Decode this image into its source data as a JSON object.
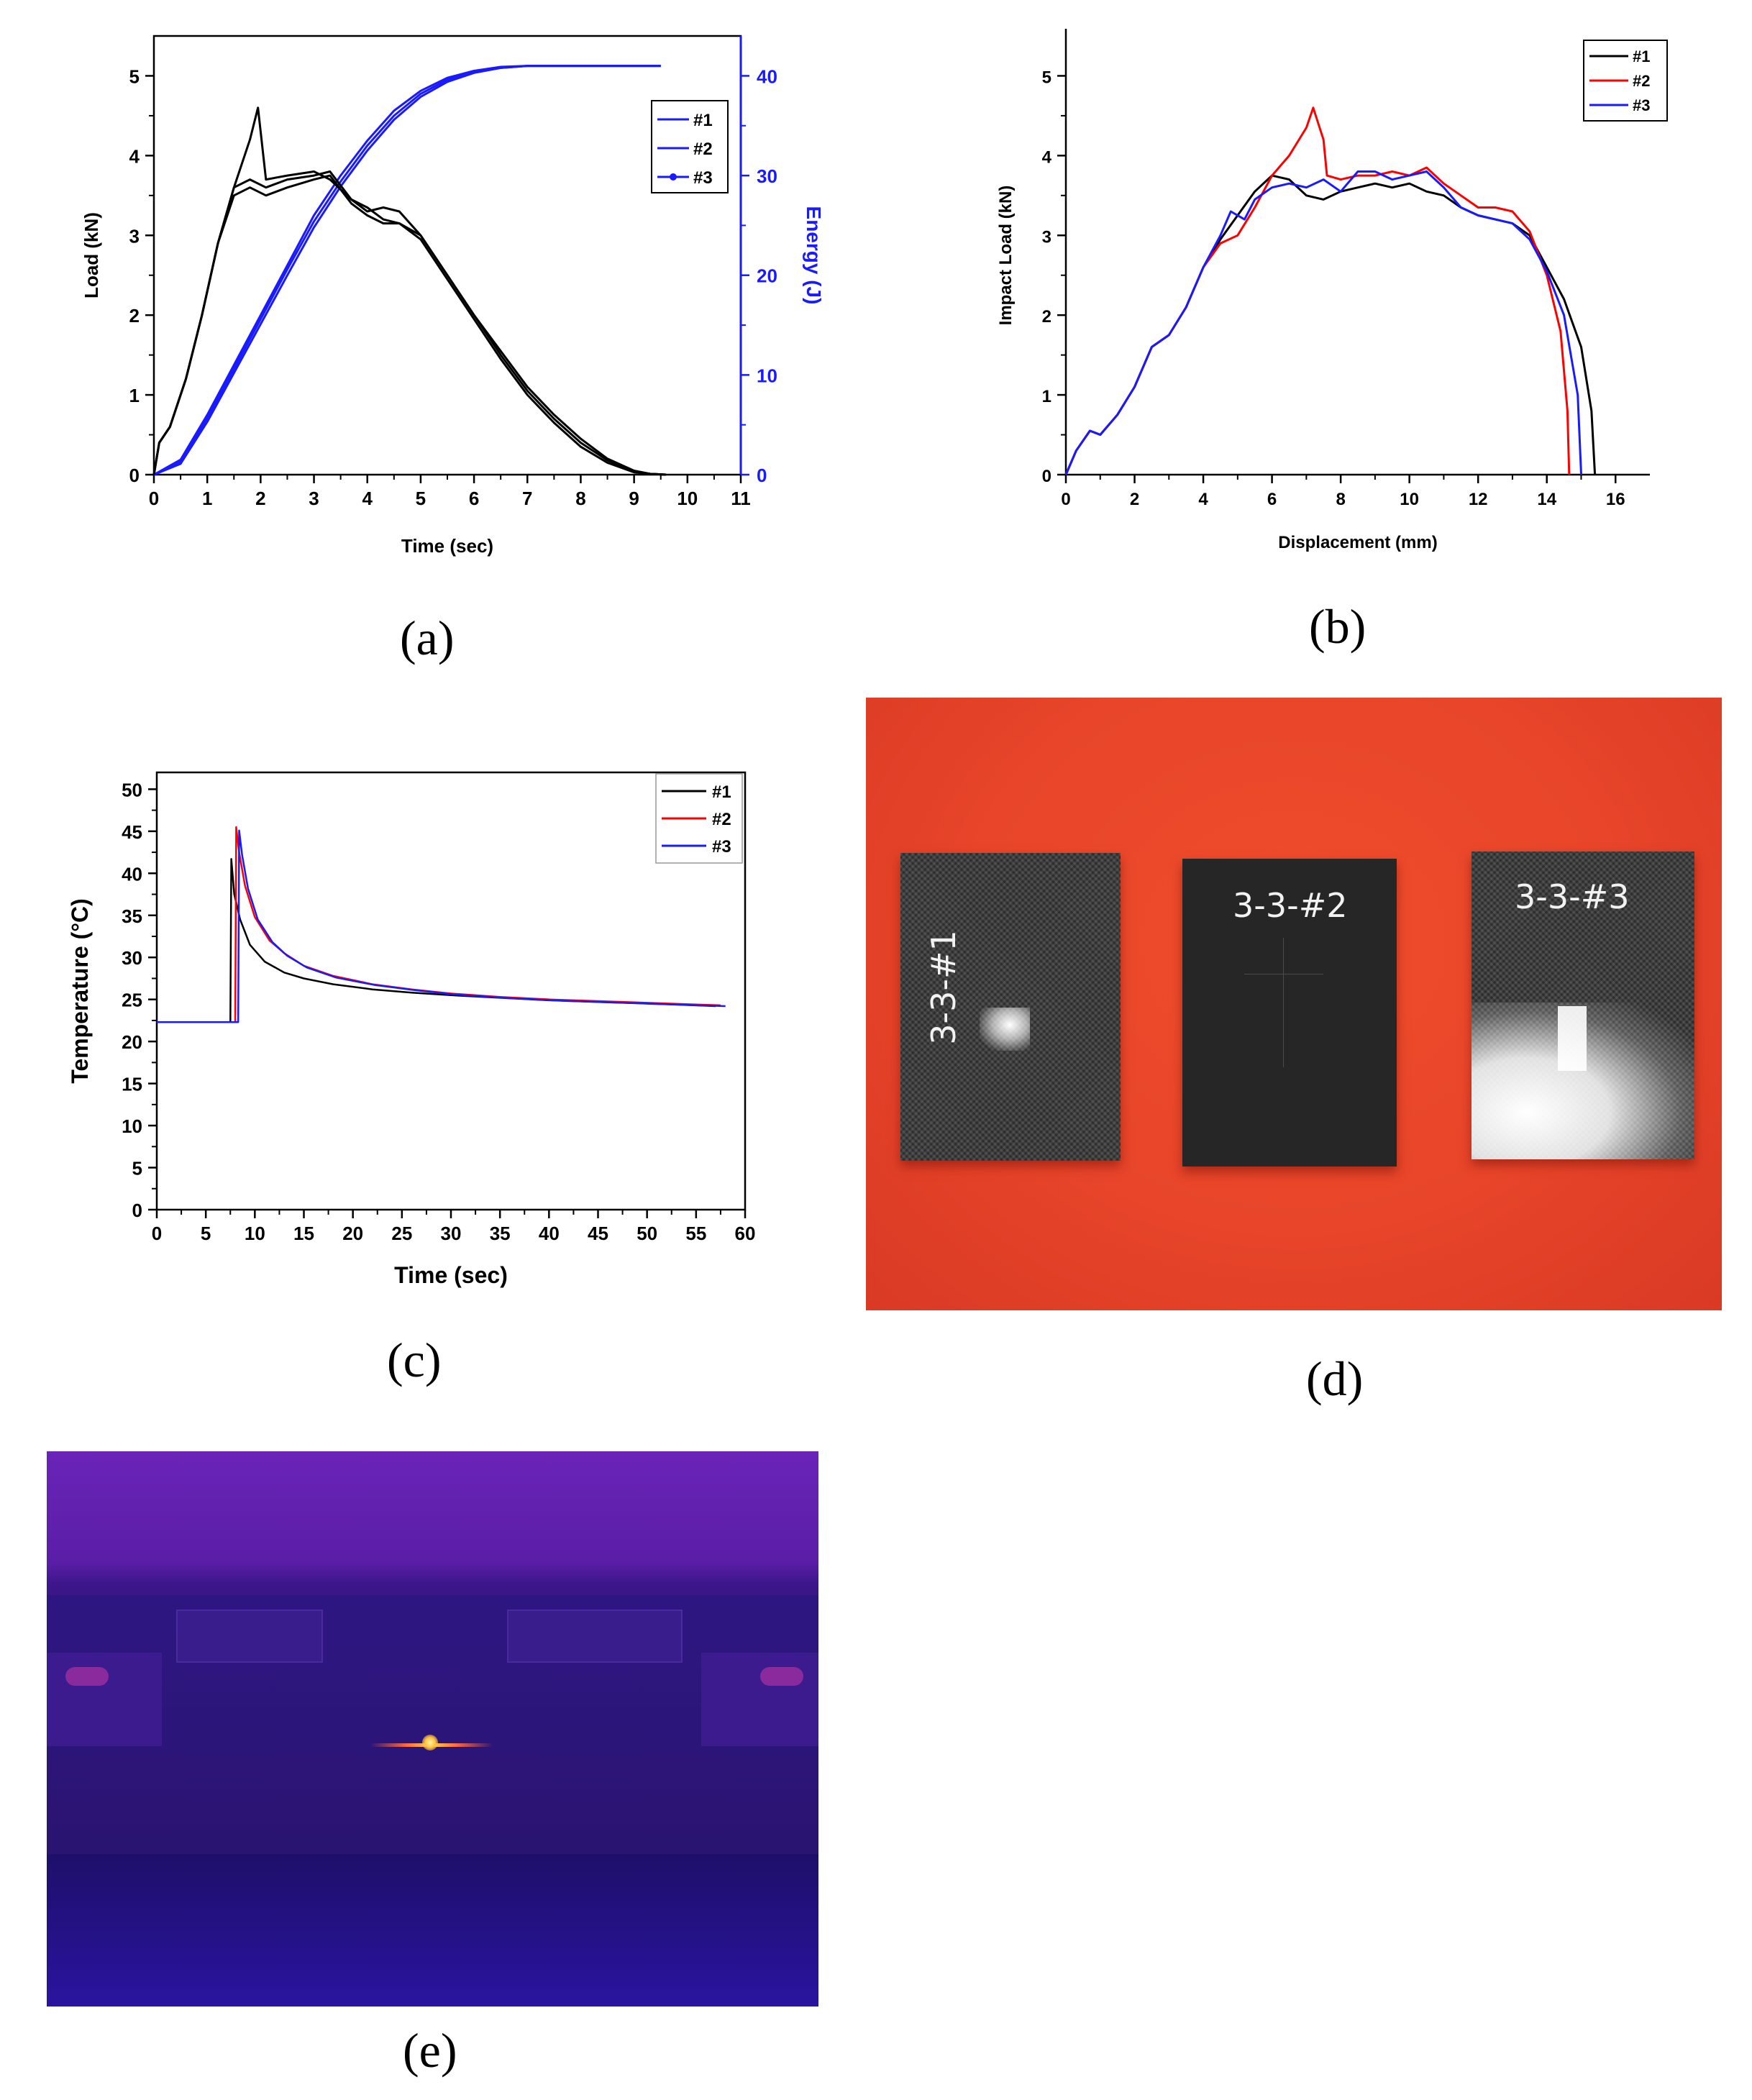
{
  "captions": [
    "(a)",
    "(b)",
    "(c)",
    "(d)",
    "(e)"
  ],
  "chart_data": [
    {
      "type": "line",
      "panel": "(a)",
      "xlabel": "Time (sec)",
      "ylabel": "Load (kN)",
      "y2label": "Energy (J)",
      "xlim": [
        0,
        11
      ],
      "ylim": [
        0,
        5.5
      ],
      "y2lim": [
        0,
        44
      ],
      "xticks": [
        0,
        1,
        2,
        3,
        4,
        5,
        6,
        7,
        8,
        9,
        10,
        11
      ],
      "yticks": [
        0,
        1,
        2,
        3,
        4,
        5
      ],
      "y2ticks": [
        0,
        10,
        20,
        30,
        40
      ],
      "legend": [
        "#1",
        "#2",
        "#3"
      ],
      "legend_position": "top-right",
      "colors": {
        "load": "#000000",
        "energy": "#1a1aff"
      },
      "load_series": [
        {
          "name": "#1",
          "x": [
            0,
            0.1,
            0.3,
            0.6,
            0.9,
            1.2,
            1.5,
            1.8,
            1.95,
            2.1,
            2.5,
            3.0,
            3.3,
            3.7,
            4.0,
            4.3,
            4.6,
            5.0,
            5.5,
            6.0,
            6.5,
            7.0,
            7.5,
            8.0,
            8.5,
            9.0,
            9.3,
            9.6
          ],
          "y": [
            0,
            0.4,
            0.6,
            1.2,
            2.0,
            2.9,
            3.6,
            4.2,
            4.6,
            3.7,
            3.75,
            3.8,
            3.7,
            3.45,
            3.3,
            3.35,
            3.3,
            3.0,
            2.5,
            2.0,
            1.55,
            1.1,
            0.75,
            0.45,
            0.2,
            0.05,
            0.01,
            0
          ]
        },
        {
          "name": "#2",
          "x": [
            0,
            0.1,
            0.3,
            0.6,
            0.9,
            1.2,
            1.5,
            1.8,
            2.1,
            2.5,
            3.0,
            3.3,
            3.7,
            4.0,
            4.3,
            4.6,
            5.0,
            5.5,
            6.0,
            6.5,
            7.0,
            7.5,
            8.0,
            8.5,
            9.0,
            9.3,
            9.6
          ],
          "y": [
            0,
            0.4,
            0.6,
            1.2,
            2.0,
            2.9,
            3.6,
            3.7,
            3.6,
            3.7,
            3.75,
            3.8,
            3.45,
            3.35,
            3.2,
            3.15,
            3.0,
            2.5,
            2.0,
            1.5,
            1.05,
            0.7,
            0.4,
            0.18,
            0.04,
            0.01,
            0
          ]
        },
        {
          "name": "#3",
          "x": [
            0,
            0.1,
            0.3,
            0.6,
            0.9,
            1.2,
            1.5,
            1.8,
            2.1,
            2.5,
            3.0,
            3.3,
            3.7,
            4.0,
            4.3,
            4.6,
            5.0,
            5.5,
            6.0,
            6.5,
            7.0,
            7.5,
            8.0,
            8.5,
            9.0,
            9.3,
            9.6
          ],
          "y": [
            0,
            0.4,
            0.6,
            1.2,
            2.0,
            2.9,
            3.5,
            3.6,
            3.5,
            3.6,
            3.7,
            3.75,
            3.4,
            3.25,
            3.15,
            3.15,
            2.95,
            2.45,
            1.95,
            1.45,
            1.0,
            0.65,
            0.35,
            0.15,
            0.03,
            0.01,
            0
          ]
        }
      ],
      "energy_series": [
        {
          "name": "#1",
          "x": [
            0,
            0.5,
            1,
            1.5,
            2,
            2.5,
            3,
            3.5,
            4,
            4.5,
            5,
            5.5,
            6,
            6.5,
            7,
            7.5,
            8,
            9,
            9.5
          ],
          "y": [
            0,
            1.5,
            6,
            11,
            16,
            21,
            26,
            30,
            33.5,
            36.5,
            38.5,
            39.8,
            40.5,
            40.9,
            41,
            41,
            41,
            41,
            41
          ]
        },
        {
          "name": "#2",
          "x": [
            0,
            0.5,
            1,
            1.5,
            2,
            2.5,
            3,
            3.5,
            4,
            4.5,
            5,
            5.5,
            6,
            6.5,
            7,
            7.5,
            8,
            9,
            9.5
          ],
          "y": [
            0,
            1.3,
            5.7,
            10.6,
            15.6,
            20.6,
            25.4,
            29.4,
            33,
            36,
            38.2,
            39.6,
            40.4,
            40.8,
            41,
            41,
            41,
            41,
            41
          ]
        },
        {
          "name": "#3",
          "x": [
            0,
            0.5,
            1,
            1.5,
            2,
            2.5,
            3,
            3.5,
            4,
            4.5,
            5,
            5.5,
            6,
            6.5,
            7,
            7.5,
            8,
            9,
            9.5
          ],
          "y": [
            0,
            1.1,
            5.3,
            10.2,
            15.1,
            20,
            24.8,
            28.9,
            32.5,
            35.6,
            37.9,
            39.4,
            40.3,
            40.8,
            41,
            41,
            41,
            41,
            41
          ]
        }
      ]
    },
    {
      "type": "line",
      "panel": "(b)",
      "xlabel": "Displacement (mm)",
      "ylabel": "Impact Load (kN)",
      "xlim": [
        0,
        17
      ],
      "ylim": [
        0,
        5.5
      ],
      "xticks": [
        0,
        2,
        4,
        6,
        8,
        10,
        12,
        14,
        16
      ],
      "yticks": [
        0,
        1,
        2,
        3,
        4,
        5
      ],
      "legend_position": "top-right",
      "series": [
        {
          "name": "#1",
          "color": "#000000",
          "x": [
            0,
            0.3,
            0.7,
            1.0,
            1.5,
            2.0,
            2.5,
            3.0,
            3.5,
            4.0,
            4.5,
            5.0,
            5.5,
            6.0,
            6.5,
            7.0,
            7.5,
            8.0,
            8.5,
            9.0,
            9.5,
            10.0,
            10.5,
            11.0,
            11.5,
            12.0,
            12.5,
            13.0,
            13.5,
            14.0,
            14.5,
            15.0,
            15.3,
            15.4
          ],
          "y": [
            0,
            0.3,
            0.55,
            0.5,
            0.75,
            1.1,
            1.6,
            1.75,
            2.1,
            2.6,
            2.95,
            3.25,
            3.55,
            3.75,
            3.7,
            3.5,
            3.45,
            3.55,
            3.6,
            3.65,
            3.6,
            3.65,
            3.55,
            3.5,
            3.35,
            3.25,
            3.2,
            3.15,
            3.0,
            2.6,
            2.2,
            1.6,
            0.8,
            0
          ]
        },
        {
          "name": "#2",
          "color": "#ff0000",
          "x": [
            0,
            0.3,
            0.7,
            1.0,
            1.5,
            2.0,
            2.5,
            3.0,
            3.5,
            4.0,
            4.5,
            5.0,
            5.5,
            6.0,
            6.5,
            7.0,
            7.2,
            7.5,
            7.6,
            8.0,
            8.5,
            9.0,
            9.5,
            10.0,
            10.5,
            11.0,
            11.5,
            12.0,
            12.5,
            13.0,
            13.5,
            14.0,
            14.4,
            14.6,
            14.65
          ],
          "y": [
            0,
            0.3,
            0.55,
            0.5,
            0.75,
            1.1,
            1.6,
            1.75,
            2.1,
            2.6,
            2.9,
            3.0,
            3.35,
            3.75,
            4.0,
            4.35,
            4.6,
            4.2,
            3.75,
            3.7,
            3.75,
            3.75,
            3.8,
            3.75,
            3.85,
            3.65,
            3.5,
            3.35,
            3.35,
            3.3,
            3.05,
            2.5,
            1.8,
            0.8,
            0
          ]
        },
        {
          "name": "#3",
          "color": "#1a1aff",
          "x": [
            0,
            0.3,
            0.7,
            1.0,
            1.5,
            2.0,
            2.5,
            3.0,
            3.5,
            4.0,
            4.5,
            4.8,
            5.2,
            5.5,
            6.0,
            6.5,
            7.0,
            7.5,
            8.0,
            8.5,
            9.0,
            9.5,
            10.0,
            10.5,
            11.0,
            11.5,
            12.0,
            12.5,
            13.0,
            13.5,
            14.0,
            14.5,
            14.9,
            15.0
          ],
          "y": [
            0,
            0.3,
            0.55,
            0.5,
            0.75,
            1.1,
            1.6,
            1.75,
            2.1,
            2.6,
            3.0,
            3.3,
            3.2,
            3.45,
            3.6,
            3.65,
            3.6,
            3.7,
            3.55,
            3.8,
            3.8,
            3.7,
            3.75,
            3.8,
            3.6,
            3.35,
            3.25,
            3.2,
            3.15,
            2.95,
            2.55,
            2.0,
            1.0,
            0
          ]
        }
      ]
    },
    {
      "type": "line",
      "panel": "(c)",
      "xlabel": "Time (sec)",
      "ylabel": "Temperature (°C)",
      "xlim": [
        0,
        60
      ],
      "ylim": [
        0,
        52
      ],
      "xticks": [
        0,
        5,
        10,
        15,
        20,
        25,
        30,
        35,
        40,
        45,
        50,
        55,
        60
      ],
      "yticks": [
        0,
        5,
        10,
        15,
        20,
        25,
        30,
        35,
        40,
        45,
        50
      ],
      "legend_position": "top-right",
      "series": [
        {
          "name": "#1",
          "color": "#000000",
          "x": [
            0,
            7.5,
            7.6,
            7.9,
            8.5,
            9.5,
            11,
            13,
            15,
            18,
            22,
            26,
            30,
            35,
            40,
            45,
            50,
            55,
            57
          ],
          "y": [
            22.3,
            22.3,
            41.7,
            37.5,
            34.5,
            31.5,
            29.5,
            28.2,
            27.5,
            26.8,
            26.2,
            25.8,
            25.5,
            25.2,
            24.9,
            24.7,
            24.5,
            24.3,
            24.2
          ]
        },
        {
          "name": "#2",
          "color": "#ff0000",
          "x": [
            0,
            8,
            8.1,
            8.4,
            9,
            10,
            11.5,
            13,
            15,
            18,
            22,
            26,
            30,
            35,
            40,
            45,
            50,
            55,
            57.5
          ],
          "y": [
            22.3,
            22.3,
            45.5,
            42.5,
            38.5,
            34.8,
            32.0,
            30.5,
            29.0,
            27.8,
            26.8,
            26.2,
            25.7,
            25.3,
            25.0,
            24.8,
            24.6,
            24.4,
            24.3
          ]
        },
        {
          "name": "#3",
          "color": "#1a1aff",
          "x": [
            0,
            8.3,
            8.4,
            8.7,
            9.3,
            10.3,
            11.8,
            13.3,
            15.3,
            18.3,
            22.3,
            26.3,
            30.3,
            35.3,
            40.3,
            45.3,
            50.3,
            55.3,
            58
          ],
          "y": [
            22.3,
            22.3,
            45.1,
            42.2,
            38.2,
            34.5,
            31.8,
            30.2,
            28.8,
            27.6,
            26.7,
            26.1,
            25.6,
            25.2,
            24.9,
            24.7,
            24.5,
            24.3,
            24.2
          ]
        }
      ]
    }
  ],
  "photos": {
    "specimen_labels": [
      "3-3-#1",
      "3-3-#2",
      "3-3-#3"
    ]
  }
}
